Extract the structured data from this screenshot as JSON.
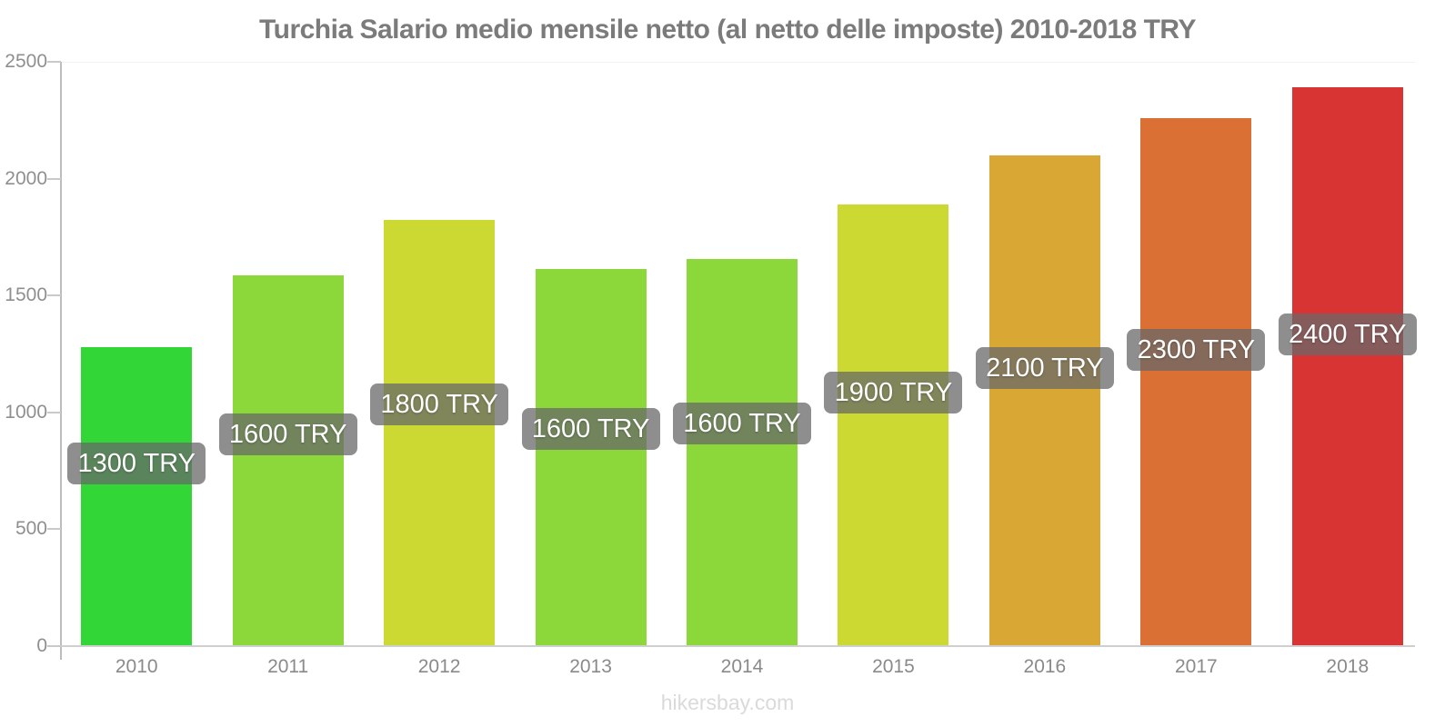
{
  "title": "Turchia Salario medio mensile netto (al netto delle imposte) 2010-2018 TRY",
  "footer": "hikersbay.com",
  "chart_data": {
    "type": "bar",
    "title": "Turchia Salario medio mensile netto (al netto delle imposte) 2010-2018 TRY",
    "categories": [
      "2010",
      "2011",
      "2012",
      "2013",
      "2014",
      "2015",
      "2016",
      "2017",
      "2018"
    ],
    "values": [
      1300,
      1600,
      1800,
      1600,
      1600,
      1900,
      2100,
      2300,
      2400
    ],
    "bar_labels": [
      "1300 TRY",
      "1600 TRY",
      "1800 TRY",
      "1600 TRY",
      "1600 TRY",
      "1900 TRY",
      "2100 TRY",
      "2300 TRY",
      "2400 TRY"
    ],
    "bar_colors": [
      "#32d636",
      "#8cd73a",
      "#ccd933",
      "#8cd73a",
      "#8cd73a",
      "#ccd933",
      "#d9a834",
      "#db7034",
      "#d93434"
    ],
    "unit": "TRY",
    "xlabel": "",
    "ylabel": "",
    "ylim": [
      0,
      2500
    ],
    "yticks": [
      0,
      500,
      1000,
      1500,
      2000,
      2500
    ],
    "grid": false,
    "legend": false,
    "badge_style": {
      "background": "rgba(104,104,104,0.75)",
      "text_color": "#ffffff"
    },
    "layout_hints": {
      "estimated_bar_values": [
        1280,
        1585,
        1825,
        1615,
        1655,
        1890,
        2100,
        2260,
        2390
      ],
      "badge_center_y": [
        510,
        478,
        445,
        472,
        466,
        432,
        405,
        385,
        368
      ]
    }
  }
}
